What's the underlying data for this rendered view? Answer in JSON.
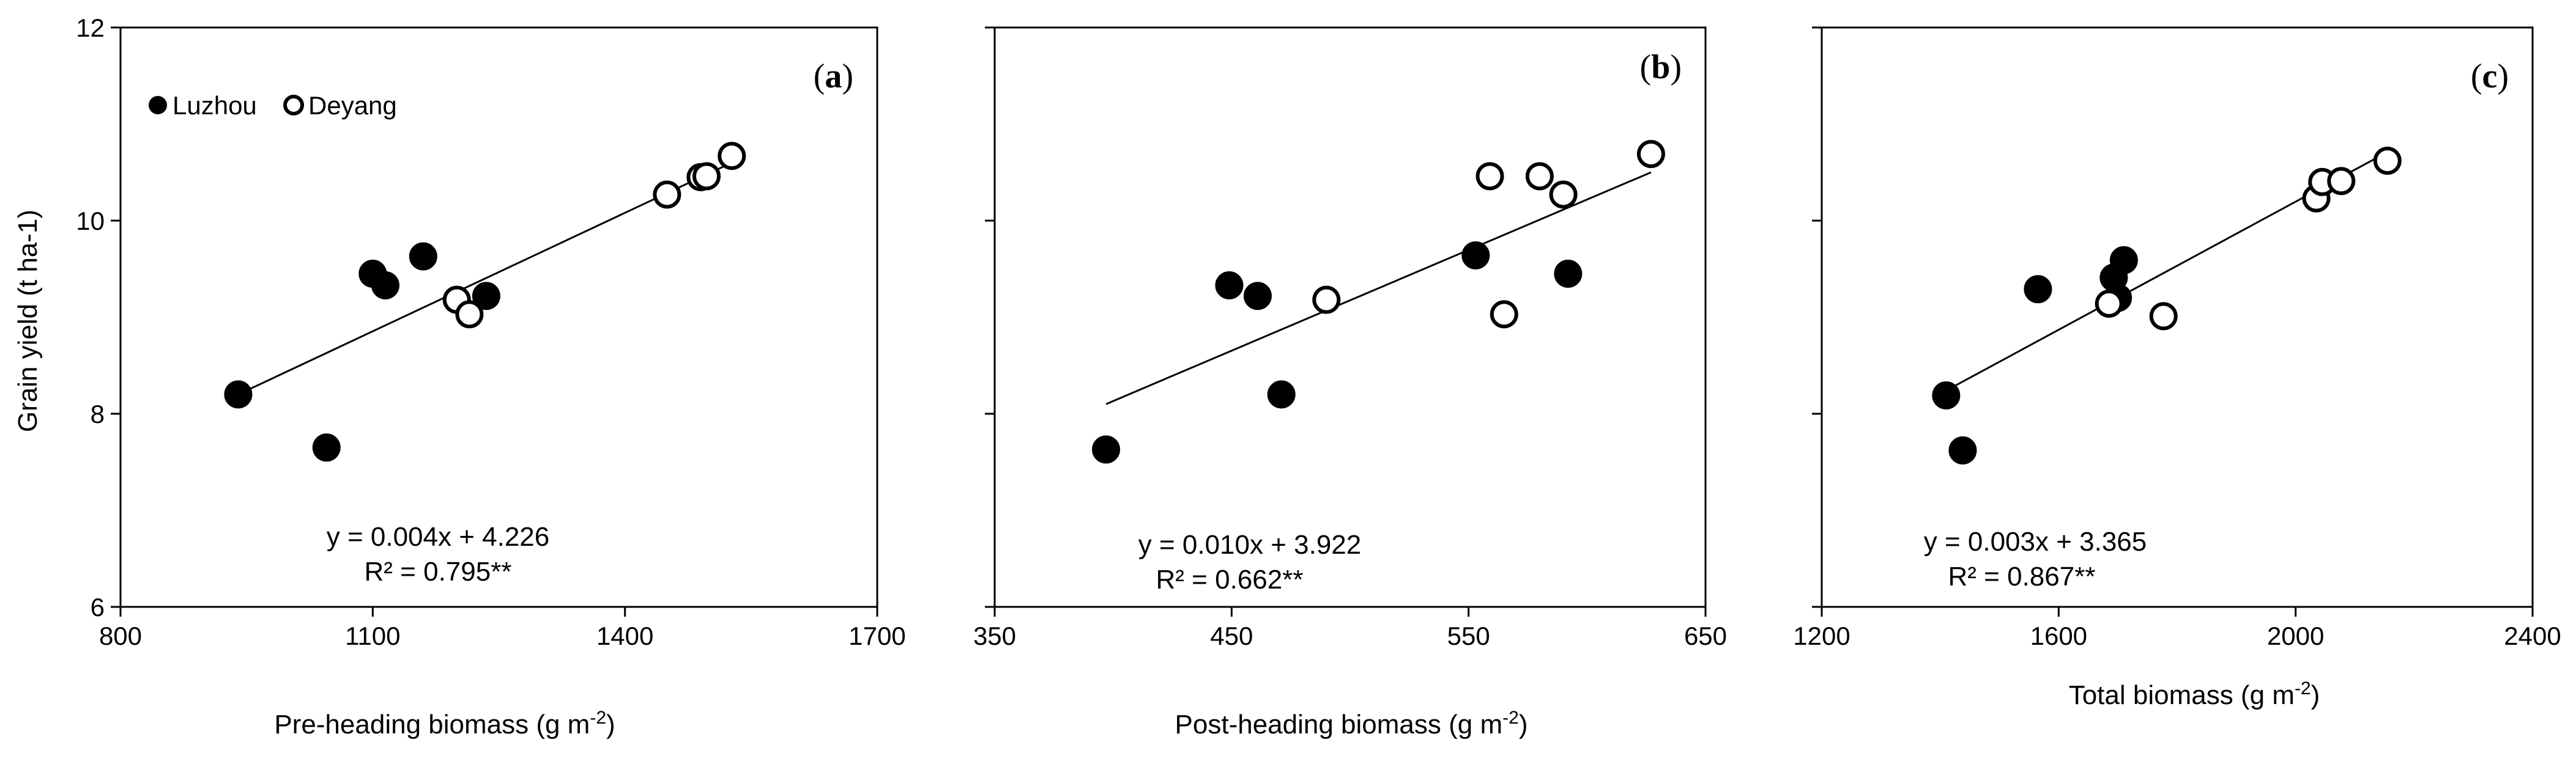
{
  "y_axis_label": "Grain yield (t ha-1)",
  "legend": [
    {
      "name": "Luzhou",
      "marker": "filled"
    },
    {
      "name": "Deyang",
      "marker": "open"
    }
  ],
  "chart_data": [
    {
      "type": "scatter",
      "panel_label": "a",
      "xlabel": "Pre-heading biomass (g m-2)",
      "ylabel": "Grain yield (t ha-1)",
      "xlim": [
        800,
        1700
      ],
      "ylim": [
        6,
        12
      ],
      "xticks": [
        800,
        1100,
        1400,
        1700
      ],
      "yticks": [
        6,
        8,
        10,
        12
      ],
      "series": [
        {
          "name": "Luzhou",
          "marker": "filled",
          "points": [
            [
              940,
              8.2
            ],
            [
              1045,
              7.65
            ],
            [
              1100,
              9.45
            ],
            [
              1115,
              9.33
            ],
            [
              1160,
              9.63
            ],
            [
              1235,
              9.22
            ]
          ]
        },
        {
          "name": "Deyang",
          "marker": "open",
          "points": [
            [
              1200,
              9.18
            ],
            [
              1215,
              9.03
            ],
            [
              1450,
              10.27
            ],
            [
              1490,
              10.45
            ],
            [
              1497,
              10.46
            ],
            [
              1527,
              10.67
            ]
          ]
        }
      ],
      "fit": {
        "x": [
          940,
          1527
        ],
        "y": [
          8.2,
          10.6
        ]
      },
      "equation": "y = 0.004x + 4.226",
      "r2": "R² = 0.795**"
    },
    {
      "type": "scatter",
      "panel_label": "b",
      "xlabel": "Post-heading biomass (g m-2)",
      "ylabel": "",
      "xlim": [
        350,
        650
      ],
      "ylim": [
        6,
        12
      ],
      "xticks": [
        350,
        450,
        550,
        650
      ],
      "yticks": [
        6,
        8,
        10,
        12
      ],
      "series": [
        {
          "name": "Luzhou",
          "marker": "filled",
          "points": [
            [
              397,
              7.63
            ],
            [
              449,
              9.33
            ],
            [
              461,
              9.22
            ],
            [
              471,
              8.2
            ],
            [
              553,
              9.64
            ],
            [
              592,
              9.45
            ]
          ]
        },
        {
          "name": "Deyang",
          "marker": "open",
          "points": [
            [
              490,
              9.18
            ],
            [
              559,
              10.46
            ],
            [
              565,
              9.03
            ],
            [
              580,
              10.46
            ],
            [
              590,
              10.27
            ],
            [
              627,
              10.69
            ]
          ]
        }
      ],
      "fit": {
        "x": [
          397,
          627
        ],
        "y": [
          8.1,
          10.5
        ]
      },
      "equation": "y = 0.010x + 3.922",
      "r2": "R² = 0.662**"
    },
    {
      "type": "scatter",
      "panel_label": "c",
      "xlabel": "Total biomass (g m-2)",
      "ylabel": "",
      "xlim": [
        1200,
        2400
      ],
      "ylim": [
        6,
        12
      ],
      "xticks": [
        1200,
        1600,
        2000,
        2400
      ],
      "yticks": [
        6,
        8,
        10,
        12
      ],
      "series": [
        {
          "name": "Luzhou",
          "marker": "filled",
          "points": [
            [
              1410,
              8.19
            ],
            [
              1438,
              7.62
            ],
            [
              1565,
              9.29
            ],
            [
              1693,
              9.41
            ],
            [
              1700,
              9.2
            ],
            [
              1710,
              9.59
            ]
          ]
        },
        {
          "name": "Deyang",
          "marker": "open",
          "points": [
            [
              1685,
              9.14
            ],
            [
              1777,
              9.01
            ],
            [
              2035,
              10.23
            ],
            [
              2045,
              10.4
            ],
            [
              2077,
              10.41
            ],
            [
              2155,
              10.62
            ]
          ]
        }
      ],
      "fit": {
        "x": [
          1410,
          2155
        ],
        "y": [
          8.24,
          10.71
        ]
      },
      "equation": "y = 0.003x + 3.365",
      "r2": "R² = 0.867**"
    }
  ]
}
